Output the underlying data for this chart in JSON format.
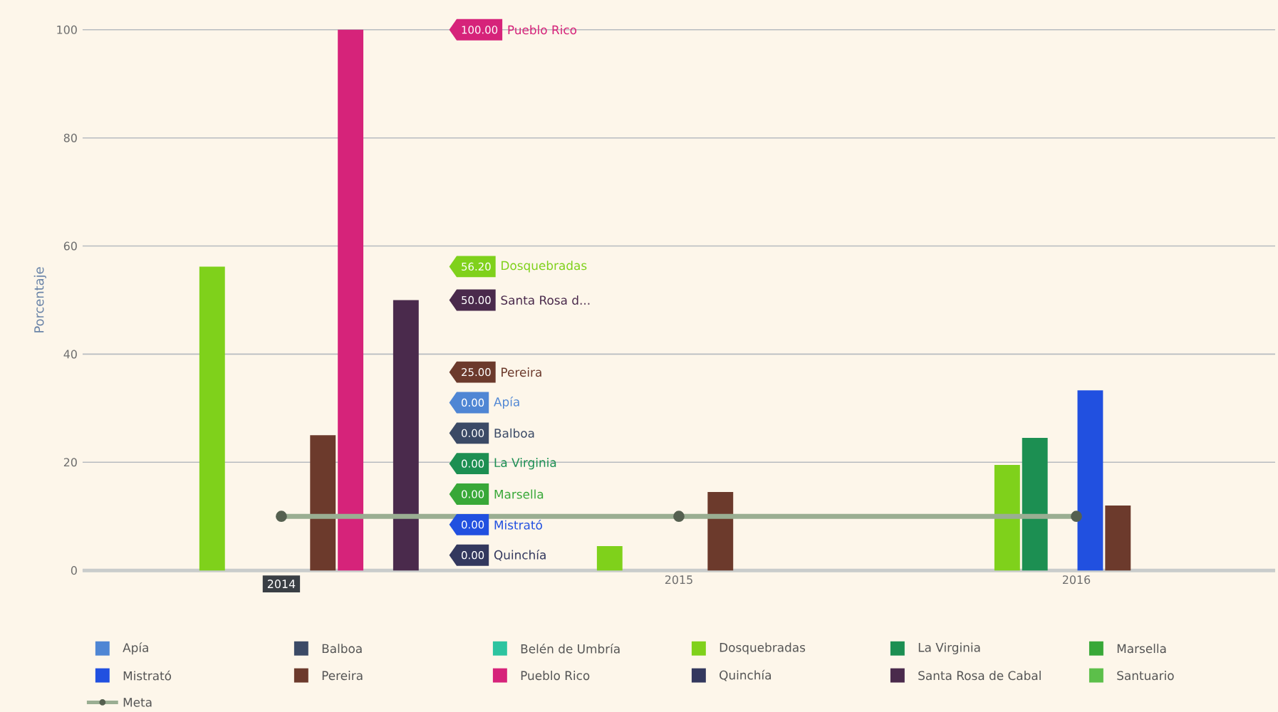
{
  "chart_data": {
    "type": "bar",
    "ylabel": "Porcentaje",
    "categories": [
      "2014",
      "2015",
      "2016"
    ],
    "ylim": [
      0,
      100
    ],
    "yticks": [
      0,
      20,
      40,
      60,
      80,
      100
    ],
    "grid": "y",
    "legend": "bottom",
    "series": [
      {
        "name": "Apía",
        "color": "#4f86d4",
        "values": [
          0,
          null,
          null
        ]
      },
      {
        "name": "Balboa",
        "color": "#3b4a66",
        "values": [
          0,
          null,
          null
        ]
      },
      {
        "name": "Belén de Umbría",
        "color": "#2cc4a0",
        "values": [
          null,
          null,
          null
        ]
      },
      {
        "name": "Dosquebradas",
        "color": "#7fd11b",
        "values": [
          56.2,
          4.5,
          19.5
        ]
      },
      {
        "name": "La Virginia",
        "color": "#1c8f52",
        "values": [
          0,
          null,
          24.5
        ]
      },
      {
        "name": "Marsella",
        "color": "#38a838",
        "values": [
          0,
          null,
          null
        ]
      },
      {
        "name": "Mistrató",
        "color": "#2150e0",
        "values": [
          0,
          null,
          33.3
        ]
      },
      {
        "name": "Pereira",
        "color": "#6c3a2c",
        "values": [
          25,
          14.5,
          12
        ]
      },
      {
        "name": "Pueblo Rico",
        "color": "#d6237a",
        "values": [
          100,
          null,
          null
        ]
      },
      {
        "name": "Quinchía",
        "color": "#33385e",
        "values": [
          0,
          null,
          null
        ]
      },
      {
        "name": "Santa Rosa de Cabal",
        "color": "#4a2a4c",
        "values": [
          50,
          null,
          null
        ]
      },
      {
        "name": "Santuario",
        "color": "#5cbf4a",
        "values": [
          null,
          null,
          null
        ]
      },
      {
        "name": "Meta",
        "type": "line",
        "color": "#9aae92",
        "marker": "circle",
        "values": [
          10,
          10,
          10
        ]
      }
    ],
    "annotations": [
      "100.00",
      "Pueblo Rico",
      "56.20",
      "Dosquebradas",
      "50.00",
      "Santa Rosa d...",
      "25.00",
      "Pereira",
      "0.00",
      "Apía",
      "0.00",
      "Balboa",
      "0.00",
      "La Virginia",
      "0.00",
      "Marsella",
      "0.00",
      "Mistrató",
      "0.00",
      "Quinchía"
    ]
  }
}
